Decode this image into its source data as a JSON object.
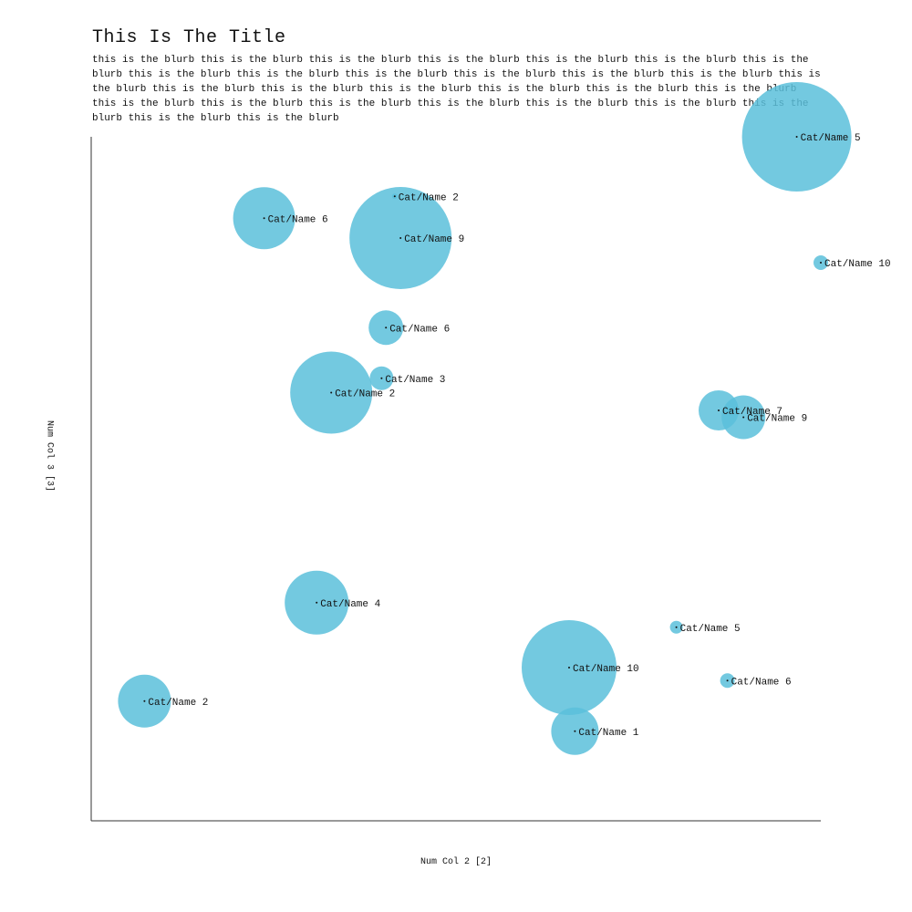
{
  "chart_data": {
    "type": "scatter",
    "title": "This Is The Title",
    "subtitle": "this is the blurb this is the blurb this is the blurb this is the blurb this is the blurb this is the blurb this is the blurb this is the blurb this is the blurb this is the blurb this is the blurb this is the blurb this is the blurb this is the blurb this is the blurb this is the blurb this is the blurb this is the blurb this is the blurb this is the blurb this is the blurb this is the blurb this is the blurb this is the blurb this is the blurb this is the blurb this is the blurb this is the blurb this is the blurb",
    "xlabel": "Num Col 2 [2]",
    "ylabel": "Num Col 3 [3]",
    "xlim": [
      0,
      100
    ],
    "ylim": [
      0,
      100
    ],
    "grid": false,
    "color": "#5bc0da",
    "points": [
      {
        "label": "Cat/Name 5",
        "x": 96.7,
        "y": 100.0,
        "size": 60
      },
      {
        "label": "Cat/Name 2",
        "x": 41.6,
        "y": 91.3,
        "size": 3
      },
      {
        "label": "Cat/Name 6",
        "x": 23.7,
        "y": 88.1,
        "size": 34
      },
      {
        "label": "Cat/Name 9",
        "x": 42.4,
        "y": 85.2,
        "size": 56
      },
      {
        "label": "Cat/Name 10",
        "x": 100.0,
        "y": 81.6,
        "size": 8
      },
      {
        "label": "Cat/Name 6",
        "x": 40.4,
        "y": 72.1,
        "size": 19
      },
      {
        "label": "Cat/Name 3",
        "x": 39.8,
        "y": 64.7,
        "size": 13
      },
      {
        "label": "Cat/Name 2",
        "x": 32.9,
        "y": 62.6,
        "size": 45
      },
      {
        "label": "Cat/Name 7",
        "x": 86.0,
        "y": 60.0,
        "size": 22
      },
      {
        "label": "Cat/Name 9",
        "x": 89.4,
        "y": 59.0,
        "size": 24
      },
      {
        "label": "Cat/Name 4",
        "x": 30.9,
        "y": 31.9,
        "size": 35
      },
      {
        "label": "Cat/Name 5",
        "x": 80.2,
        "y": 28.3,
        "size": 7
      },
      {
        "label": "Cat/Name 10",
        "x": 65.5,
        "y": 22.4,
        "size": 52
      },
      {
        "label": "Cat/Name 6",
        "x": 87.2,
        "y": 20.5,
        "size": 8
      },
      {
        "label": "Cat/Name 2",
        "x": 7.3,
        "y": 17.5,
        "size": 29
      },
      {
        "label": "Cat/Name 1",
        "x": 66.3,
        "y": 13.1,
        "size": 26
      }
    ]
  }
}
